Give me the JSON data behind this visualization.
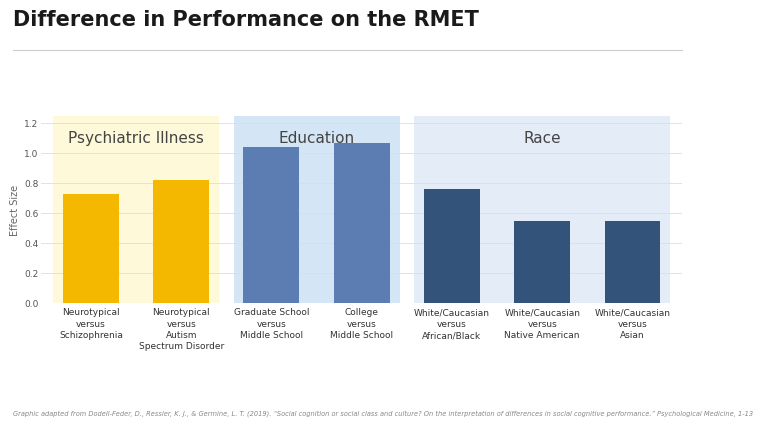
{
  "title": "Difference in Performance on the RMET",
  "ylabel": "Effect Size",
  "ylim": [
    0,
    1.25
  ],
  "yticks": [
    0,
    0.2,
    0.4,
    0.6,
    0.8,
    1.0,
    1.2
  ],
  "bars": [
    {
      "label": "Neurotypical\nversus\nSchizophrenia",
      "value": 0.73,
      "color": "#F5B800",
      "group": 0
    },
    {
      "label": "Neurotypical\nversus\nAutism\nSpectrum Disorder",
      "value": 0.82,
      "color": "#F5B800",
      "group": 0
    },
    {
      "label": "Graduate School\nversus\nMiddle School",
      "value": 1.04,
      "color": "#5B7DB1",
      "group": 1
    },
    {
      "label": "College\nversus\nMiddle School",
      "value": 1.07,
      "color": "#5B7DB1",
      "group": 1
    },
    {
      "label": "White/Caucasian\nversus\nAfrican/Black",
      "value": 0.76,
      "color": "#34537A",
      "group": 2
    },
    {
      "label": "White/Caucasian\nversus\nNative American",
      "value": 0.55,
      "color": "#34537A",
      "group": 2
    },
    {
      "label": "White/Caucasian\nversus\nAsian",
      "value": 0.55,
      "color": "#34537A",
      "group": 2
    }
  ],
  "groups": [
    {
      "name": "Psychiatric Illness",
      "bar_indices": [
        0,
        1
      ],
      "bg_color": "#FEF9D9"
    },
    {
      "name": "Education",
      "bar_indices": [
        2,
        3
      ],
      "bg_color": "#D4E5F5"
    },
    {
      "name": "Race",
      "bar_indices": [
        4,
        5,
        6
      ],
      "bg_color": "#E4EDF7"
    }
  ],
  "footnote": "Graphic adapted from Dodell-Feder, D., Ressler, K. J., & Germine, L. T. (2019). “Social cognition or social class and culture? On the interpretation of differences in social cognitive performance.” Psychological Medicine, 1-13",
  "background_color": "#FFFFFF",
  "title_fontsize": 15,
  "group_label_fontsize": 11,
  "ylabel_fontsize": 7,
  "tick_fontsize": 6.5,
  "footnote_fontsize": 4.8,
  "bar_width": 0.62,
  "group_padding": 0.42,
  "xlim_left": -0.55,
  "xlim_right": 6.55
}
